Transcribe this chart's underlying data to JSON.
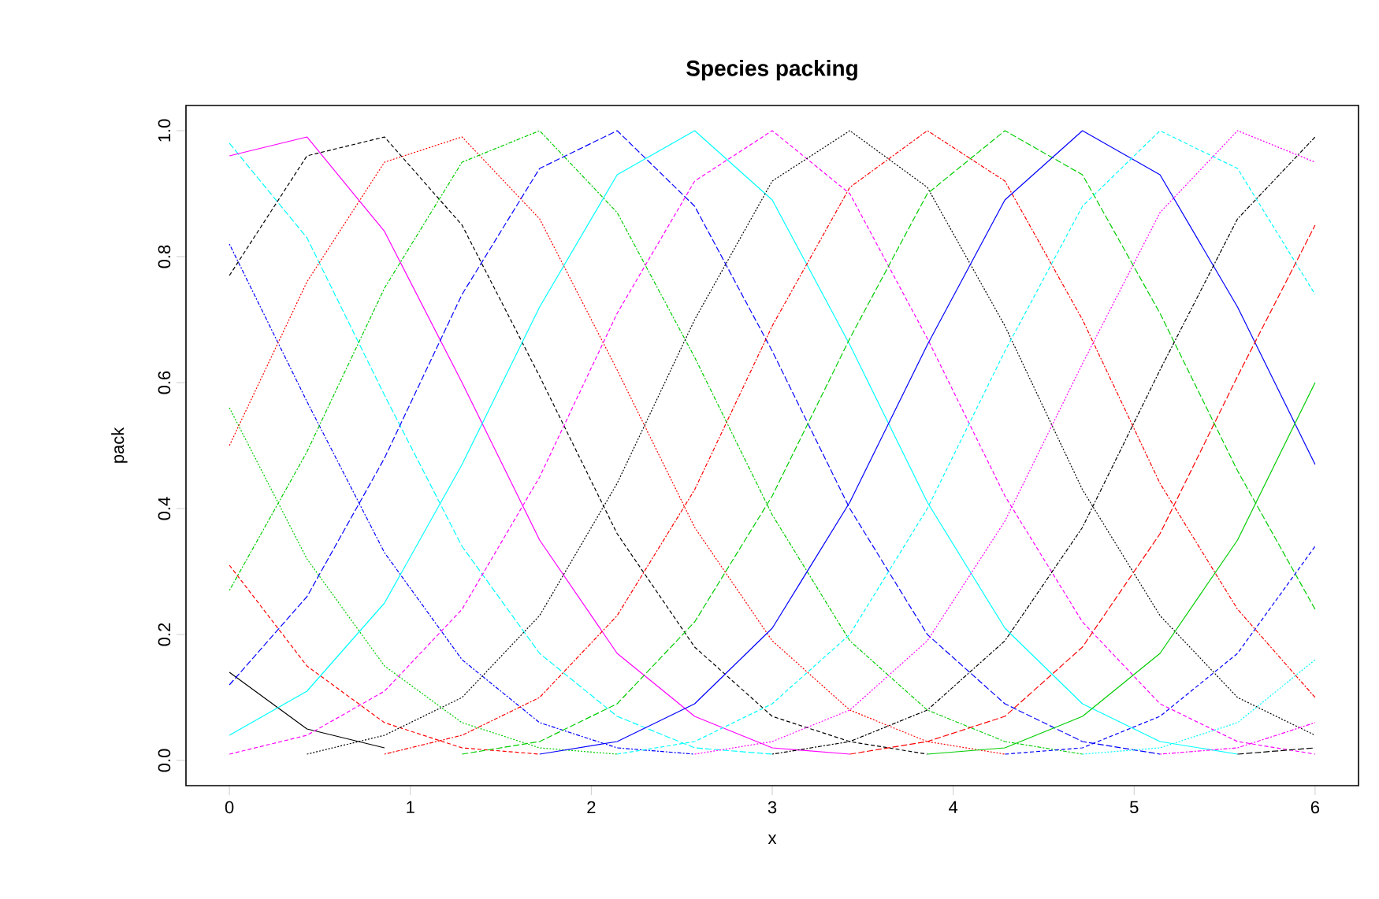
{
  "chart_data": {
    "type": "line",
    "title": "Species packing",
    "xlabel": "x",
    "ylabel": "pack",
    "x": [
      0,
      0.4286,
      0.8571,
      1.2857,
      1.7143,
      2.1429,
      2.5714,
      3,
      3.4286,
      3.8571,
      4.2857,
      4.7143,
      5.1429,
      5.5714,
      6
    ],
    "xlim": [
      -0.24,
      6.24
    ],
    "ylim": [
      -0.04,
      1.04
    ],
    "xticks": [
      0,
      1,
      2,
      3,
      4,
      5,
      6
    ],
    "yticks": [
      {
        "value": 0,
        "label": "0.0"
      },
      {
        "value": 0.2,
        "label": "0.2"
      },
      {
        "value": 0.4,
        "label": "0.4"
      },
      {
        "value": 0.6,
        "label": "0.6"
      },
      {
        "value": 0.8,
        "label": "0.8"
      },
      {
        "value": 1.0,
        "label": "1.0"
      }
    ],
    "marker": "none",
    "series": [
      {
        "color": "#000000",
        "line_style": "solid",
        "values": [
          0.14,
          0.05,
          0.02,
          null,
          null,
          null,
          null,
          null,
          null,
          null,
          null,
          null,
          null,
          null,
          null
        ]
      },
      {
        "color": "#ff0000",
        "line_style": "dashed",
        "values": [
          0.31,
          0.15,
          0.06,
          0.02,
          0.01,
          null,
          null,
          null,
          null,
          null,
          null,
          null,
          null,
          null,
          null
        ]
      },
      {
        "color": "#00cd00",
        "line_style": "dotted",
        "values": [
          0.56,
          0.32,
          0.15,
          0.06,
          0.02,
          0.01,
          null,
          null,
          null,
          null,
          null,
          null,
          null,
          null,
          null
        ]
      },
      {
        "color": "#0000ff",
        "line_style": "dashdot",
        "values": [
          0.82,
          0.57,
          0.33,
          0.16,
          0.06,
          0.02,
          0.01,
          null,
          null,
          null,
          null,
          null,
          null,
          null,
          null
        ]
      },
      {
        "color": "#00ffff",
        "line_style": "longdash",
        "values": [
          0.98,
          0.83,
          0.58,
          0.34,
          0.17,
          0.07,
          0.02,
          0.01,
          null,
          null,
          null,
          null,
          null,
          null,
          null
        ]
      },
      {
        "color": "#ff00ff",
        "line_style": "solid",
        "values": [
          0.96,
          0.99,
          0.84,
          0.6,
          0.35,
          0.17,
          0.07,
          0.02,
          0.01,
          null,
          null,
          null,
          null,
          null,
          null
        ]
      },
      {
        "color": "#000000",
        "line_style": "dashed",
        "values": [
          0.77,
          0.96,
          0.99,
          0.85,
          0.61,
          0.36,
          0.18,
          0.07,
          0.03,
          0.01,
          null,
          null,
          null,
          null,
          null
        ]
      },
      {
        "color": "#ff0000",
        "line_style": "dotted",
        "values": [
          0.5,
          0.76,
          0.95,
          0.99,
          0.86,
          0.62,
          0.37,
          0.19,
          0.08,
          0.03,
          0.01,
          null,
          null,
          null,
          null
        ]
      },
      {
        "color": "#00cd00",
        "line_style": "dashdot",
        "values": [
          0.27,
          0.49,
          0.75,
          0.95,
          1.0,
          0.87,
          0.64,
          0.39,
          0.19,
          0.08,
          0.03,
          0.01,
          null,
          null,
          null
        ]
      },
      {
        "color": "#0000ff",
        "line_style": "longdash",
        "values": [
          0.12,
          0.26,
          0.48,
          0.74,
          0.94,
          1.0,
          0.88,
          0.65,
          0.4,
          0.2,
          0.09,
          0.03,
          0.01,
          null,
          null
        ]
      },
      {
        "color": "#00ffff",
        "line_style": "solid",
        "values": [
          0.04,
          0.11,
          0.25,
          0.47,
          0.72,
          0.93,
          1.0,
          0.89,
          0.66,
          0.41,
          0.21,
          0.09,
          0.03,
          0.01,
          null
        ]
      },
      {
        "color": "#ff00ff",
        "line_style": "dashed",
        "values": [
          0.01,
          0.04,
          0.11,
          0.24,
          0.45,
          0.71,
          0.92,
          1.0,
          0.9,
          0.67,
          0.42,
          0.22,
          0.09,
          0.03,
          0.01
        ]
      },
      {
        "color": "#000000",
        "line_style": "dotted",
        "values": [
          null,
          0.01,
          0.04,
          0.1,
          0.23,
          0.44,
          0.7,
          0.92,
          1.0,
          0.91,
          0.69,
          0.43,
          0.23,
          0.1,
          0.04
        ]
      },
      {
        "color": "#ff0000",
        "line_style": "dashdot",
        "values": [
          null,
          null,
          0.01,
          0.04,
          0.1,
          0.23,
          0.43,
          0.69,
          0.91,
          1.0,
          0.92,
          0.7,
          0.44,
          0.24,
          0.1
        ]
      },
      {
        "color": "#00cd00",
        "line_style": "longdash",
        "values": [
          null,
          null,
          null,
          0.01,
          0.03,
          0.09,
          0.22,
          0.42,
          0.67,
          0.9,
          1.0,
          0.93,
          0.71,
          0.46,
          0.24
        ]
      },
      {
        "color": "#0000ff",
        "line_style": "solid",
        "values": [
          null,
          null,
          null,
          null,
          0.01,
          0.03,
          0.09,
          0.21,
          0.41,
          0.66,
          0.89,
          1.0,
          0.93,
          0.72,
          0.47
        ]
      },
      {
        "color": "#00ffff",
        "line_style": "dashed",
        "values": [
          null,
          null,
          null,
          null,
          null,
          0.01,
          0.03,
          0.09,
          0.2,
          0.4,
          0.65,
          0.88,
          1.0,
          0.94,
          0.74
        ]
      },
      {
        "color": "#ff00ff",
        "line_style": "dotted",
        "values": [
          null,
          null,
          null,
          null,
          null,
          null,
          0.01,
          0.03,
          0.08,
          0.19,
          0.38,
          0.63,
          0.87,
          1.0,
          0.95
        ]
      },
      {
        "color": "#000000",
        "line_style": "dashdot",
        "values": [
          null,
          null,
          null,
          null,
          null,
          null,
          null,
          0.01,
          0.03,
          0.08,
          0.19,
          0.37,
          0.62,
          0.86,
          0.99
        ]
      },
      {
        "color": "#ff0000",
        "line_style": "longdash",
        "values": [
          null,
          null,
          null,
          null,
          null,
          null,
          null,
          null,
          0.01,
          0.03,
          0.07,
          0.18,
          0.36,
          0.61,
          0.85
        ]
      },
      {
        "color": "#00cd00",
        "line_style": "solid",
        "values": [
          null,
          null,
          null,
          null,
          null,
          null,
          null,
          null,
          null,
          0.01,
          0.02,
          0.07,
          0.17,
          0.35,
          0.6
        ]
      },
      {
        "color": "#0000ff",
        "line_style": "dashed",
        "values": [
          null,
          null,
          null,
          null,
          null,
          null,
          null,
          null,
          null,
          null,
          0.01,
          0.02,
          0.07,
          0.17,
          0.34
        ]
      },
      {
        "color": "#00ffff",
        "line_style": "dotted",
        "values": [
          null,
          null,
          null,
          null,
          null,
          null,
          null,
          null,
          null,
          null,
          null,
          0.01,
          0.02,
          0.06,
          0.16
        ]
      },
      {
        "color": "#ff00ff",
        "line_style": "dashdot",
        "values": [
          null,
          null,
          null,
          null,
          null,
          null,
          null,
          null,
          null,
          null,
          null,
          null,
          0.01,
          0.02,
          0.06
        ]
      },
      {
        "color": "#000000",
        "line_style": "longdash",
        "values": [
          null,
          null,
          null,
          null,
          null,
          null,
          null,
          null,
          null,
          null,
          null,
          null,
          null,
          0.01,
          0.02
        ]
      }
    ]
  }
}
